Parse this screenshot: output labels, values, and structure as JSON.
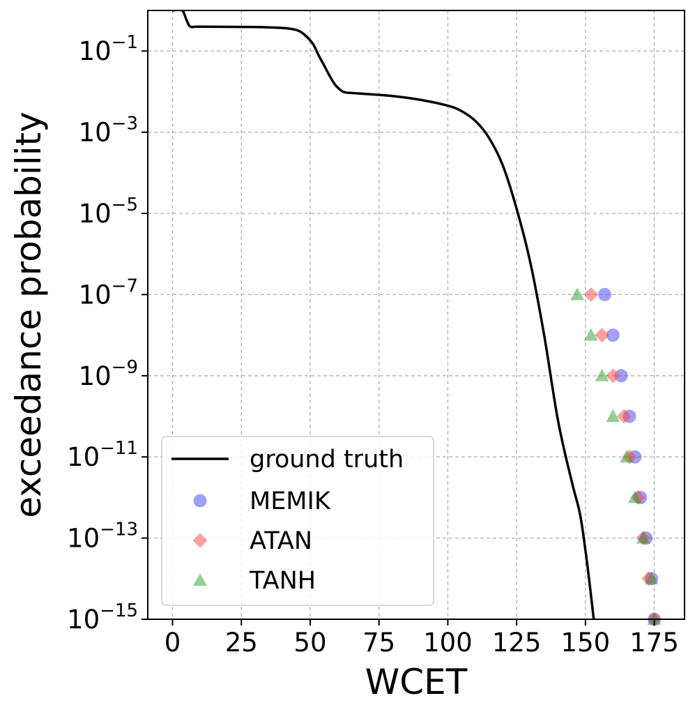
{
  "chart_data": {
    "type": "scatter",
    "title": "",
    "xlabel": "WCET",
    "ylabel": "exceedance probability",
    "xscale": "linear",
    "yscale": "log",
    "xlim": [
      -9,
      186
    ],
    "ylim": [
      1e-15,
      1
    ],
    "grid": true,
    "legend_position": "lower-left",
    "xticks": [
      0,
      25,
      50,
      75,
      100,
      125,
      150,
      175
    ],
    "xtick_labels": [
      "0",
      "25",
      "50",
      "75",
      "100",
      "125",
      "150",
      "175"
    ],
    "yticks": [
      0.1,
      0.001,
      1e-05,
      1e-07,
      1e-09,
      1e-11,
      1e-13,
      1e-15
    ],
    "ytick_labels": [
      {
        "base": "10",
        "exp": "−1"
      },
      {
        "base": "10",
        "exp": "−3"
      },
      {
        "base": "10",
        "exp": "−5"
      },
      {
        "base": "10",
        "exp": "−7"
      },
      {
        "base": "10",
        "exp": "−9"
      },
      {
        "base": "10",
        "exp": "−11"
      },
      {
        "base": "10",
        "exp": "−13"
      },
      {
        "base": "10",
        "exp": "−15"
      }
    ],
    "line": {
      "name": "ground truth",
      "color": "#000000",
      "points": [
        [
          0,
          1
        ],
        [
          3.5,
          1
        ],
        [
          5,
          0.6
        ],
        [
          6.5,
          0.4
        ],
        [
          10,
          0.4
        ],
        [
          30,
          0.39
        ],
        [
          40,
          0.37
        ],
        [
          45,
          0.33
        ],
        [
          48,
          0.25
        ],
        [
          51,
          0.15
        ],
        [
          53,
          0.08
        ],
        [
          55,
          0.045
        ],
        [
          57,
          0.025
        ],
        [
          59,
          0.015
        ],
        [
          61,
          0.011
        ],
        [
          63,
          0.0095
        ],
        [
          68,
          0.009
        ],
        [
          80,
          0.0078
        ],
        [
          90,
          0.0063
        ],
        [
          100,
          0.0045
        ],
        [
          105,
          0.0033
        ],
        [
          110,
          0.0019
        ],
        [
          115,
          0.00072
        ],
        [
          120,
          0.00015
        ],
        [
          125,
          1.3e-05
        ],
        [
          130,
          6e-07
        ],
        [
          135,
          1e-08
        ],
        [
          140,
          8e-11
        ],
        [
          145,
          2.5e-12
        ],
        [
          148,
          4e-13
        ],
        [
          150,
          5e-14
        ],
        [
          152,
          4e-15
        ],
        [
          153,
          1e-15
        ]
      ]
    },
    "series": [
      {
        "name": "MEMIK",
        "marker": "circle",
        "color": "#4040ee",
        "points": [
          [
            157,
            1e-07
          ],
          [
            160,
            1e-08
          ],
          [
            163,
            1e-09
          ],
          [
            166,
            1e-10
          ],
          [
            168,
            1e-11
          ],
          [
            170,
            1e-12
          ],
          [
            172,
            1e-13
          ],
          [
            174,
            1e-14
          ],
          [
            175,
            1e-15
          ]
        ]
      },
      {
        "name": "ATAN",
        "marker": "diamond",
        "color": "#ff4040",
        "points": [
          [
            152,
            1e-07
          ],
          [
            156,
            1e-08
          ],
          [
            160,
            1e-09
          ],
          [
            164,
            1e-10
          ],
          [
            166,
            1e-11
          ],
          [
            169,
            1e-12
          ],
          [
            171,
            1e-13
          ],
          [
            173,
            1e-14
          ],
          [
            175,
            1e-15
          ]
        ]
      },
      {
        "name": "TANH",
        "marker": "triangle",
        "color": "#2ca02c",
        "points": [
          [
            147,
            1e-07
          ],
          [
            152,
            1e-08
          ],
          [
            156,
            1e-09
          ],
          [
            160,
            1e-10
          ],
          [
            165,
            1e-11
          ],
          [
            168,
            1e-12
          ],
          [
            171,
            1e-13
          ],
          [
            174,
            1e-14
          ],
          [
            175,
            1e-15
          ]
        ]
      }
    ],
    "legend": [
      "ground truth",
      "MEMIK",
      "ATAN",
      "TANH"
    ]
  }
}
